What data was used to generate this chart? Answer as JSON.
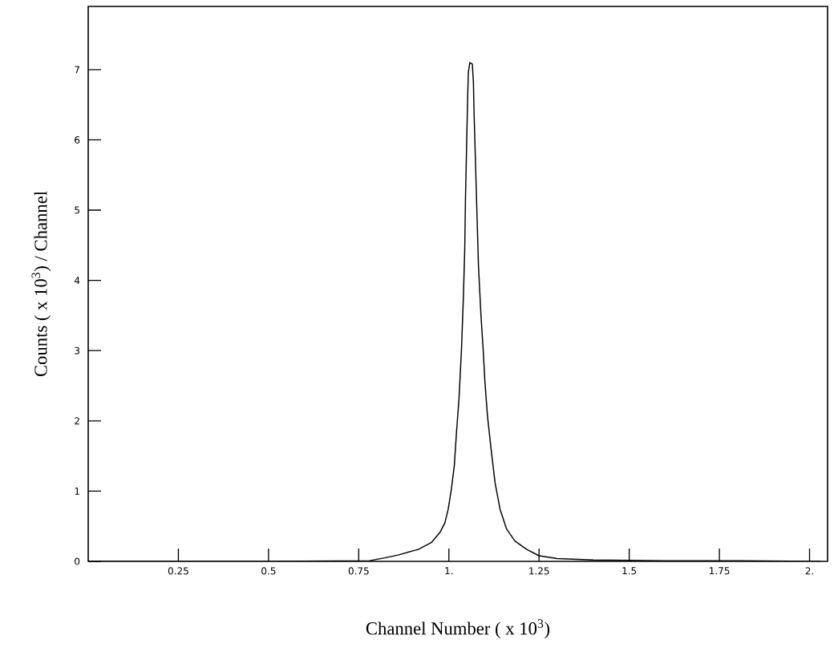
{
  "chart_data": {
    "type": "line",
    "xlabel": "Channel Number ( x 10$^{3}$)",
    "ylabel": "Counts ( x 10$^{3}$) / Channel",
    "x": [
      0.02,
      0.5,
      0.78,
      0.822,
      0.859,
      0.915,
      0.952,
      0.975,
      0.989,
      0.998,
      1.007,
      1.015,
      1.021,
      1.028,
      1.035,
      1.04,
      1.044,
      1.046,
      1.049,
      1.052,
      1.054,
      1.058,
      1.065,
      1.068,
      1.07,
      1.074,
      1.078,
      1.082,
      1.089,
      1.095,
      1.1,
      1.107,
      1.117,
      1.128,
      1.142,
      1.16,
      1.183,
      1.216,
      1.25,
      1.3,
      1.4,
      1.6,
      1.8,
      2.03
    ],
    "series": [
      {
        "color": "#000000",
        "values": [
          0,
          0,
          0.01,
          0.05,
          0.09,
          0.17,
          0.27,
          0.41,
          0.55,
          0.74,
          1.03,
          1.36,
          1.83,
          2.31,
          3.02,
          3.73,
          4.45,
          5.16,
          5.87,
          6.59,
          6.96,
          7.1,
          7.08,
          6.82,
          6.35,
          5.64,
          4.92,
          4.21,
          3.5,
          3.02,
          2.55,
          2.07,
          1.6,
          1.12,
          0.74,
          0.46,
          0.29,
          0.17,
          0.08,
          0.04,
          0.02,
          0.01,
          0.01,
          0
        ]
      }
    ],
    "xlim": [
      0,
      2.05
    ],
    "ylim": [
      0,
      7.9
    ],
    "xticks": [
      0.25,
      0.5,
      0.75,
      {
        "value": 1,
        "label": "1."
      },
      1.25,
      1.5,
      1.75,
      {
        "value": 2,
        "label": "2."
      }
    ],
    "yticks": [
      0,
      1,
      2,
      3,
      4,
      5,
      6,
      7
    ]
  }
}
